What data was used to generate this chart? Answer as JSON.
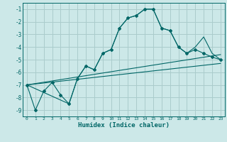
{
  "background_color": "#cce8e8",
  "grid_color": "#aacccc",
  "line_color": "#006666",
  "xlabel": "Humidex (Indice chaleur)",
  "xlim": [
    -0.5,
    23.5
  ],
  "ylim": [
    -9.5,
    -0.5
  ],
  "yticks": [
    -9,
    -8,
    -7,
    -6,
    -5,
    -4,
    -3,
    -2,
    -1
  ],
  "xticks": [
    0,
    1,
    2,
    3,
    4,
    5,
    6,
    7,
    8,
    9,
    10,
    11,
    12,
    13,
    14,
    15,
    16,
    17,
    18,
    19,
    20,
    21,
    22,
    23
  ],
  "series_main": {
    "x": [
      0,
      1,
      2,
      3,
      4,
      5,
      6,
      7,
      8,
      9,
      10,
      11,
      12,
      13,
      14,
      15,
      16,
      17,
      18,
      19,
      20,
      21,
      22,
      23
    ],
    "y": [
      -7.0,
      -9.0,
      -7.5,
      -6.8,
      -7.8,
      -8.5,
      -6.5,
      -5.5,
      -5.8,
      -4.5,
      -4.2,
      -2.5,
      -1.7,
      -1.5,
      -1.0,
      -1.0,
      -2.5,
      -2.7,
      -4.0,
      -4.5,
      -4.2,
      -4.5,
      -4.8,
      -5.0
    ]
  },
  "series_line2": {
    "x": [
      0,
      5,
      6,
      7,
      8,
      9,
      10,
      11,
      12,
      13,
      14,
      15,
      16,
      17,
      18,
      19,
      20,
      21,
      22,
      23
    ],
    "y": [
      -7.0,
      -8.5,
      -6.5,
      -5.5,
      -5.8,
      -4.5,
      -4.2,
      -2.5,
      -1.7,
      -1.5,
      -1.0,
      -1.0,
      -2.5,
      -2.7,
      -4.0,
      -4.5,
      -4.0,
      -3.2,
      -4.5,
      -5.0
    ]
  },
  "trend1": {
    "x": [
      0,
      23
    ],
    "y": [
      -7.0,
      -4.6
    ]
  },
  "trend2": {
    "x": [
      0,
      23
    ],
    "y": [
      -7.0,
      -5.3
    ]
  }
}
